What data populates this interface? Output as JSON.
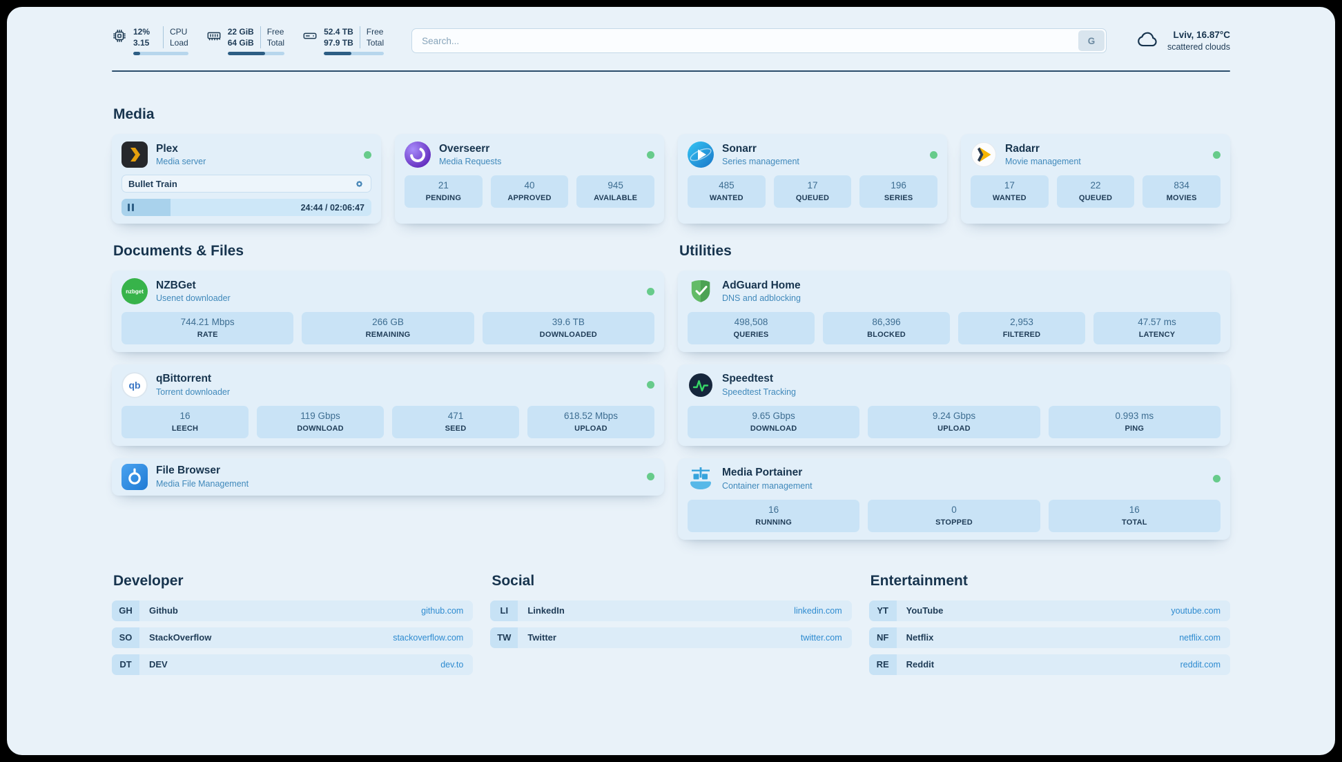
{
  "header": {
    "cpu": {
      "value": "12%",
      "load": "3.15",
      "label_top": "CPU",
      "label_bottom": "Load",
      "progress": 12
    },
    "memory": {
      "free": "22 GiB",
      "total": "64 GiB",
      "label_top": "Free",
      "label_bottom": "Total",
      "progress": 66
    },
    "disk": {
      "free": "52.4 TB",
      "total": "97.9 TB",
      "label_top": "Free",
      "label_bottom": "Total",
      "progress": 46
    },
    "search": {
      "placeholder": "Search...",
      "engine_button": "G"
    },
    "weather": {
      "location": "Lviv, 16.87°C",
      "condition": "scattered clouds"
    }
  },
  "sections": {
    "media": {
      "title": "Media"
    },
    "documents": {
      "title": "Documents & Files"
    },
    "utilities": {
      "title": "Utilities"
    }
  },
  "apps": {
    "plex": {
      "name": "Plex",
      "subtitle": "Media server",
      "now_playing": "Bullet Train",
      "time": "24:44 / 02:06:47",
      "progress": 19.5,
      "status": "online"
    },
    "overseerr": {
      "name": "Overseerr",
      "subtitle": "Media Requests",
      "status": "online",
      "stats": [
        {
          "value": "21",
          "label": "PENDING"
        },
        {
          "value": "40",
          "label": "APPROVED"
        },
        {
          "value": "945",
          "label": "AVAILABLE"
        }
      ]
    },
    "sonarr": {
      "name": "Sonarr",
      "subtitle": "Series management",
      "status": "online",
      "stats": [
        {
          "value": "485",
          "label": "WANTED"
        },
        {
          "value": "17",
          "label": "QUEUED"
        },
        {
          "value": "196",
          "label": "SERIES"
        }
      ]
    },
    "radarr": {
      "name": "Radarr",
      "subtitle": "Movie management",
      "status": "online",
      "stats": [
        {
          "value": "17",
          "label": "WANTED"
        },
        {
          "value": "22",
          "label": "QUEUED"
        },
        {
          "value": "834",
          "label": "MOVIES"
        }
      ]
    },
    "nzbget": {
      "name": "NZBGet",
      "subtitle": "Usenet downloader",
      "icon_label": "nzbget",
      "status": "online",
      "stats": [
        {
          "value": "744.21 Mbps",
          "label": "RATE"
        },
        {
          "value": "266 GB",
          "label": "REMAINING"
        },
        {
          "value": "39.6 TB",
          "label": "DOWNLOADED"
        }
      ]
    },
    "qbittorrent": {
      "name": "qBittorrent",
      "subtitle": "Torrent downloader",
      "icon_label": "qb",
      "status": "online",
      "stats": [
        {
          "value": "16",
          "label": "LEECH"
        },
        {
          "value": "119 Gbps",
          "label": "DOWNLOAD"
        },
        {
          "value": "471",
          "label": "SEED"
        },
        {
          "value": "618.52 Mbps",
          "label": "UPLOAD"
        }
      ]
    },
    "filebrowser": {
      "name": "File Browser",
      "subtitle": "Media File Management",
      "status": "online"
    },
    "adguard": {
      "name": "AdGuard Home",
      "subtitle": "DNS and adblocking",
      "stats": [
        {
          "value": "498,508",
          "label": "QUERIES"
        },
        {
          "value": "86,396",
          "label": "BLOCKED"
        },
        {
          "value": "2,953",
          "label": "FILTERED"
        },
        {
          "value": "47.57 ms",
          "label": "LATENCY"
        }
      ]
    },
    "speedtest": {
      "name": "Speedtest",
      "subtitle": "Speedtest Tracking",
      "stats": [
        {
          "value": "9.65 Gbps",
          "label": "DOWNLOAD"
        },
        {
          "value": "9.24 Gbps",
          "label": "UPLOAD"
        },
        {
          "value": "0.993 ms",
          "label": "PING"
        }
      ]
    },
    "portainer": {
      "name": "Media Portainer",
      "subtitle": "Container management",
      "status": "online",
      "stats": [
        {
          "value": "16",
          "label": "RUNNING"
        },
        {
          "value": "0",
          "label": "STOPPED"
        },
        {
          "value": "16",
          "label": "TOTAL"
        }
      ]
    }
  },
  "bookmarks": [
    {
      "title": "Developer",
      "items": [
        {
          "abbr": "GH",
          "name": "Github",
          "url": "github.com"
        },
        {
          "abbr": "SO",
          "name": "StackOverflow",
          "url": "stackoverflow.com"
        },
        {
          "abbr": "DT",
          "name": "DEV",
          "url": "dev.to"
        }
      ]
    },
    {
      "title": "Social",
      "items": [
        {
          "abbr": "LI",
          "name": "LinkedIn",
          "url": "linkedin.com"
        },
        {
          "abbr": "TW",
          "name": "Twitter",
          "url": "twitter.com"
        }
      ]
    },
    {
      "title": "Entertainment",
      "items": [
        {
          "abbr": "YT",
          "name": "YouTube",
          "url": "youtube.com"
        },
        {
          "abbr": "NF",
          "name": "Netflix",
          "url": "netflix.com"
        },
        {
          "abbr": "RE",
          "name": "Reddit",
          "url": "reddit.com"
        }
      ]
    }
  ],
  "colors": {
    "accent": "#2e8bd0",
    "status_online": "#67cb8b"
  }
}
